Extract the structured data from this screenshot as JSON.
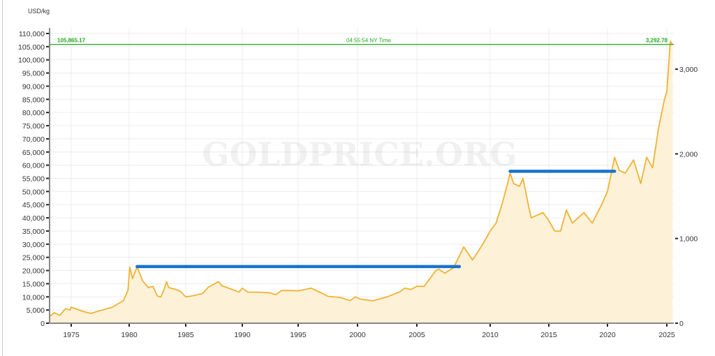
{
  "chart_data": {
    "type": "area",
    "title": "",
    "ylabel": "USD/kg",
    "watermark": "GOLDPRICE.ORG",
    "ylim": [
      0,
      110000
    ],
    "y_ticks": [
      "0",
      "5,000",
      "10,000",
      "15,000",
      "20,000",
      "25,000",
      "30,000",
      "35,000",
      "40,000",
      "45,000",
      "50,000",
      "55,000",
      "60,000",
      "65,000",
      "70,000",
      "75,000",
      "80,000",
      "85,000",
      "90,000",
      "95,000",
      "100,000",
      "105,000",
      "110,000"
    ],
    "y2_ticks": [
      "0",
      "1,000",
      "2,000",
      "3,000"
    ],
    "y2_values": [
      0,
      1000,
      2000,
      3000
    ],
    "y2_unit_factor_kg_per_oz": 32.1507,
    "x_ticks": [
      "1975",
      "1980",
      "1985",
      "1990",
      "1995",
      "2000",
      "2005",
      "2010",
      "2015",
      "2020",
      "2025"
    ],
    "xlim": [
      1973.1,
      2025.6
    ],
    "grid": true,
    "line_color": "#f0b232",
    "fill_color": "#fdf1d8",
    "current": {
      "value_kg": "105,865.17",
      "value_oz": "3,292.78",
      "time": "04:55:54 NY Time",
      "level": 105865.17,
      "color": "#22aa22"
    },
    "annotations": [
      {
        "type": "horizontal-line",
        "color": "#1a73d0",
        "x": [
          1980.7,
          2007.9
        ],
        "y": 21500
      },
      {
        "type": "horizontal-line",
        "color": "#1a73d0",
        "x": [
          2011.7,
          2020.6
        ],
        "y": 57700
      }
    ],
    "series": [
      {
        "x": [
          1973.1,
          1973.5,
          1974.0,
          1974.5,
          1974.9,
          1975.0,
          1976.0,
          1976.7,
          1977.5,
          1978.5,
          1979.0,
          1979.5,
          1979.9,
          1980.05,
          1980.3,
          1980.7,
          1981.2,
          1981.7,
          1982.1,
          1982.5,
          1982.8,
          1983.1,
          1983.3,
          1983.5,
          1984.0,
          1984.5,
          1985.0,
          1985.5,
          1986.5,
          1987.0,
          1987.9,
          1988.2,
          1989.0,
          1989.7,
          1990.0,
          1990.5,
          1991.5,
          1992.5,
          1993.0,
          1993.5,
          1994.0,
          1995.0,
          1996.1,
          1997.0,
          1997.5,
          1998.5,
          1999.4,
          1999.8,
          2000.3,
          2001.3,
          2002.5,
          2003.5,
          2004.0,
          2004.5,
          2005.0,
          2005.5,
          2006.3,
          2006.5,
          2006.9,
          2007.5,
          2008.2,
          2008.8,
          2009.5,
          2010.0,
          2010.5,
          2011.0,
          2011.6,
          2011.7,
          2012.0,
          2012.5,
          2012.8,
          2013.3,
          2013.5,
          2014.0,
          2014.5,
          2015.0,
          2015.5,
          2016.0,
          2016.5,
          2017.0,
          2017.5,
          2018.0,
          2018.7,
          2019.5,
          2020.0,
          2020.6,
          2021.0,
          2021.5,
          2022.2,
          2022.8,
          2023.3,
          2023.8,
          2024.3,
          2024.8,
          2025.0,
          2025.3,
          2025.5
        ],
        "values": [
          2500,
          4000,
          3000,
          5500,
          5000,
          6100,
          4500,
          3700,
          4800,
          6000,
          7300,
          8500,
          12500,
          21300,
          17000,
          21400,
          16000,
          13500,
          14000,
          10300,
          10000,
          13000,
          15800,
          13500,
          13000,
          12200,
          10000,
          10300,
          11300,
          13700,
          15800,
          14200,
          13000,
          11800,
          13300,
          11800,
          11800,
          11500,
          10800,
          12400,
          12400,
          12300,
          13300,
          11400,
          10200,
          9800,
          8600,
          10000,
          9100,
          8500,
          10000,
          11800,
          13300,
          12800,
          14000,
          14000,
          20000,
          20500,
          19000,
          21000,
          29000,
          24000,
          30000,
          35000,
          38000,
          45000,
          55000,
          57000,
          53000,
          52000,
          55000,
          44000,
          40000,
          41000,
          42000,
          39000,
          35000,
          35000,
          43000,
          38000,
          40000,
          42000,
          38000,
          45000,
          50000,
          63000,
          58000,
          57000,
          62000,
          53000,
          63000,
          59000,
          74000,
          85000,
          88000,
          107000,
          105865
        ]
      }
    ]
  }
}
